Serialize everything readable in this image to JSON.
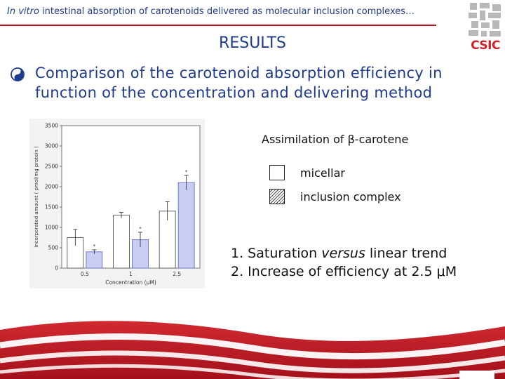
{
  "header": {
    "title_italic": "In vitro",
    "title_rest": " intestinal absorption of carotenoids delivered as molecular inclusion complexes…"
  },
  "logo": {
    "text": "CSIC"
  },
  "section_title": "RESULTS",
  "bullet": {
    "icon": "yin-yang-bullet-icon",
    "text": "Comparison of the carotenoid absorption efficiency in function of the concentration and delivering method"
  },
  "legend": {
    "title": "Assimilation of β-carotene",
    "items": [
      {
        "label": "micellar",
        "style": "open"
      },
      {
        "label": "inclusion complex",
        "style": "hatched"
      }
    ]
  },
  "conclusions": {
    "line1": "1. Saturation versus linear trend",
    "line1_prefix": "1. Saturation ",
    "line1_italic": "versus",
    "line1_suffix": " linear trend",
    "line2": "2. Increase of efficiency at 2.5 μM"
  },
  "colors": {
    "accent_blue": "#1f3b8f",
    "rule_red": "#c0111f",
    "bar_inclusion": "#c9cdf2",
    "footer_red": "#c0111f"
  },
  "chart_data": {
    "type": "bar",
    "categories": [
      "0.5",
      "1",
      "2.5"
    ],
    "xlabel": "Concentration (μM)",
    "ylabel": "Incorporated amount ( pmol/mg protein )",
    "ylim": [
      0,
      3500
    ],
    "yticks": [
      0,
      500,
      1000,
      1500,
      2000,
      2500,
      3000,
      3500
    ],
    "series": [
      {
        "style": "open",
        "values": [
          750,
          1300,
          1400
        ],
        "errors": [
          200,
          70,
          230
        ],
        "marks": [
          "",
          "",
          ""
        ]
      },
      {
        "style": "filled",
        "values": [
          400,
          700,
          2100
        ],
        "errors": [
          50,
          180,
          180
        ],
        "marks": [
          "*",
          "*",
          "*"
        ]
      }
    ]
  }
}
